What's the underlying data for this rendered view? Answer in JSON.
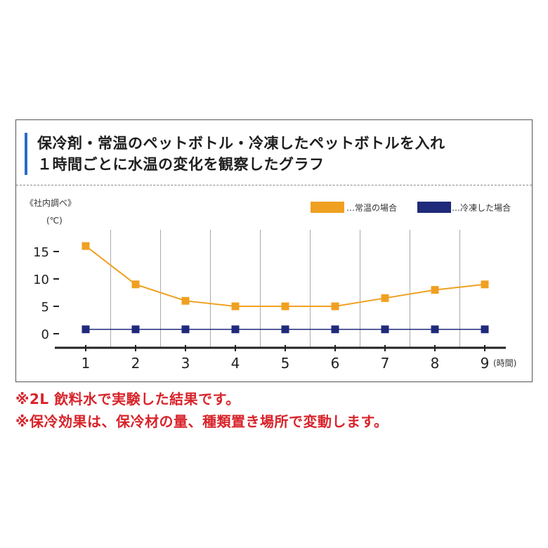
{
  "title": {
    "line1": "保冷剤・常温のペットボトル・冷凍したペットボトルを入れ",
    "line2": "１時間ごとに水温の変化を観察したグラフ"
  },
  "chart_data": {
    "type": "line",
    "source_note": "《社内調べ》",
    "y_unit": "(℃)",
    "x_unit": "(時間)",
    "categories": [
      "1",
      "2",
      "3",
      "4",
      "5",
      "6",
      "7",
      "8",
      "9"
    ],
    "x": [
      1,
      2,
      3,
      4,
      5,
      6,
      7,
      8,
      9
    ],
    "ylim": [
      -2,
      18
    ],
    "yticks": [
      0,
      5,
      10,
      15
    ],
    "grid": "vertical",
    "legend_position": "top-right",
    "series": [
      {
        "name": "…常温の場合",
        "color": "#f0a020",
        "values": [
          16,
          9,
          6,
          5,
          5,
          5,
          6.5,
          8,
          9
        ]
      },
      {
        "name": "…冷凍した場合",
        "color": "#1f2a7a",
        "values": [
          0.8,
          0.8,
          0.8,
          0.8,
          0.8,
          0.8,
          0.8,
          0.8,
          0.8
        ]
      }
    ]
  },
  "notes": [
    "※2L 飲料水で実験した結果です。",
    "※保冷効果は、保冷材の量、種類置き場所で変動します。"
  ]
}
